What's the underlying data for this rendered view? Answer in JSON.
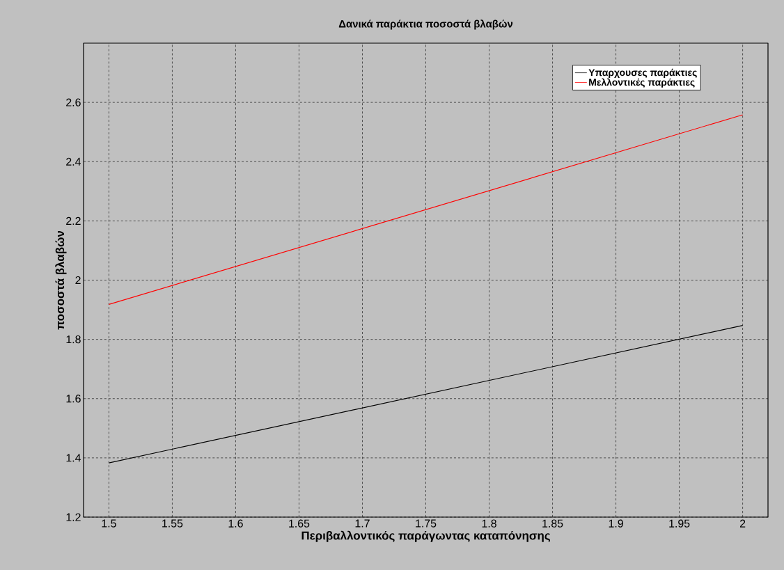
{
  "chart_data": {
    "type": "line",
    "title": "Δανικά παράκτια ποσοστά βλαβών",
    "xlabel": "Περιβαλλοντικός παράγωντας καταπόνησης",
    "ylabel": "ποσοστά βλαβών",
    "series": [
      {
        "name": "Υπαρχουσες παράκτιες",
        "color": "#000000",
        "x": [
          1.5,
          1.75,
          2
        ],
        "values": [
          1.383,
          1.615,
          1.847
        ]
      },
      {
        "name": "Μελλοντικές παράκτιες",
        "color": "#ff0000",
        "x": [
          1.5,
          1.75,
          2
        ],
        "values": [
          1.918,
          2.238,
          2.558
        ]
      }
    ],
    "xlim": [
      1.48,
      2.02
    ],
    "ylim": [
      1.2,
      2.8
    ],
    "xticks": [
      1.5,
      1.55,
      1.6,
      1.65,
      1.7,
      1.75,
      1.8,
      1.85,
      1.9,
      1.95,
      2
    ],
    "yticks": [
      1.2,
      1.4,
      1.6,
      1.8,
      2,
      2.2,
      2.4,
      2.6
    ],
    "grid": true,
    "legend": "top right",
    "line_style": "solid"
  }
}
